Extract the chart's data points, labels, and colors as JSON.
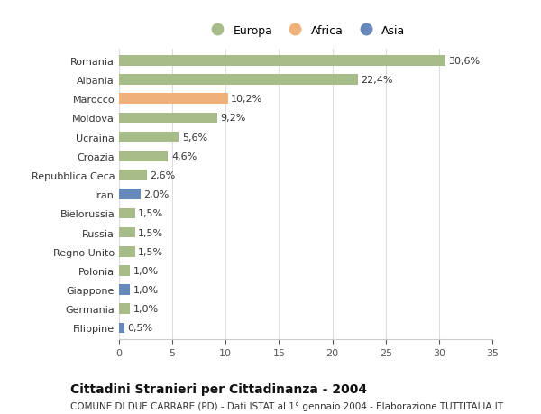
{
  "categories": [
    "Romania",
    "Albania",
    "Marocco",
    "Moldova",
    "Ucraina",
    "Croazia",
    "Repubblica Ceca",
    "Iran",
    "Bielorussia",
    "Russia",
    "Regno Unito",
    "Polonia",
    "Giappone",
    "Germania",
    "Filippine"
  ],
  "values": [
    30.6,
    22.4,
    10.2,
    9.2,
    5.6,
    4.6,
    2.6,
    2.0,
    1.5,
    1.5,
    1.5,
    1.0,
    1.0,
    1.0,
    0.5
  ],
  "labels": [
    "30,6%",
    "22,4%",
    "10,2%",
    "9,2%",
    "5,6%",
    "4,6%",
    "2,6%",
    "2,0%",
    "1,5%",
    "1,5%",
    "1,5%",
    "1,0%",
    "1,0%",
    "1,0%",
    "0,5%"
  ],
  "continents": [
    "Europa",
    "Europa",
    "Africa",
    "Europa",
    "Europa",
    "Europa",
    "Europa",
    "Asia",
    "Europa",
    "Europa",
    "Europa",
    "Europa",
    "Asia",
    "Europa",
    "Asia"
  ],
  "colors": {
    "Europa": "#a8bc8a",
    "Africa": "#f0b07a",
    "Asia": "#6688bb"
  },
  "title": "Cittadini Stranieri per Cittadinanza - 2004",
  "subtitle": "COMUNE DI DUE CARRARE (PD) - Dati ISTAT al 1° gennaio 2004 - Elaborazione TUTTITALIA.IT",
  "xlim": [
    0,
    35
  ],
  "xticks": [
    0,
    5,
    10,
    15,
    20,
    25,
    30,
    35
  ],
  "background_color": "#ffffff",
  "grid_color": "#dddddd",
  "bar_height": 0.55,
  "label_fontsize": 8,
  "tick_fontsize": 8,
  "title_fontsize": 10,
  "subtitle_fontsize": 7.5
}
